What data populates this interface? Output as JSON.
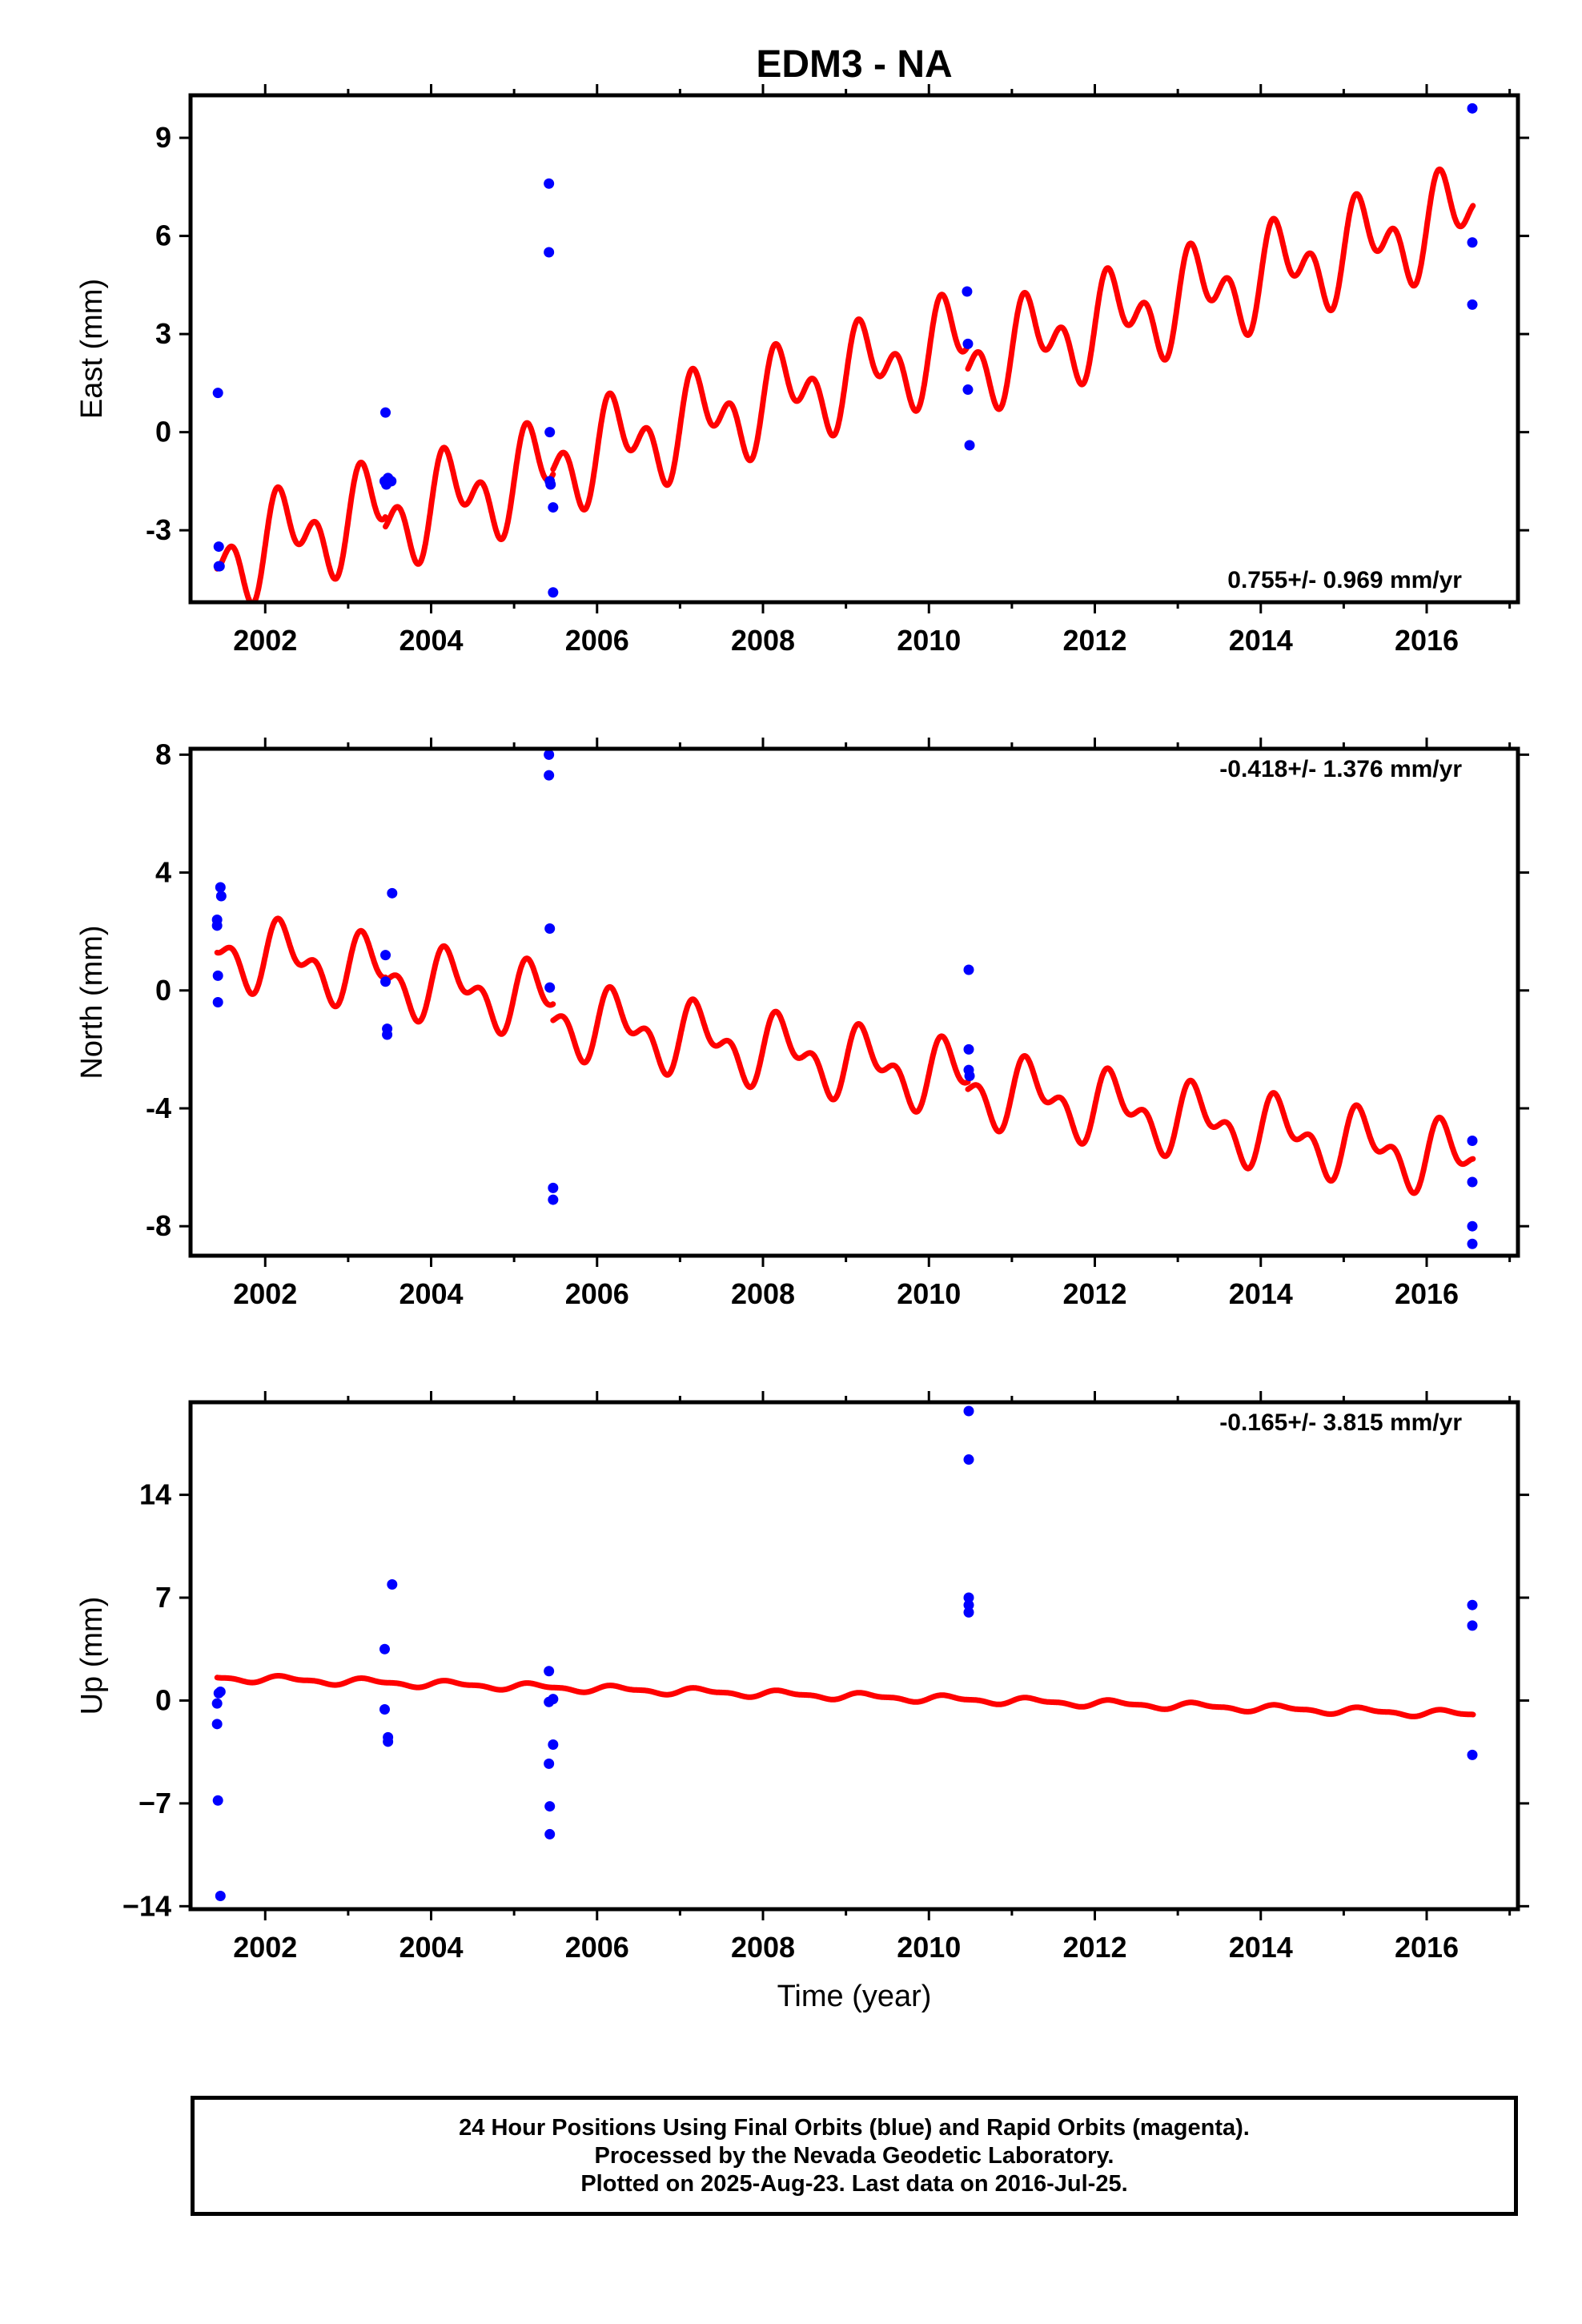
{
  "title": "EDM3 - NA",
  "colors": {
    "points": "#0000ff",
    "model": "#ff0000",
    "frame": "#000000"
  },
  "xlabel": "Time (year)",
  "footer": {
    "line1": "24 Hour Positions Using Final Orbits (blue) and Rapid Orbits (magenta).",
    "line2": "Processed by the Nevada Geodetic Laboratory.",
    "line3": "Plotted on 2025-Aug-23. Last data on 2016-Jul-25."
  },
  "chart_data": [
    {
      "type": "scatter",
      "ylabel": "East (mm)",
      "annotation": "0.755+/- 0.969 mm/yr",
      "annotation_position": "bottom-right",
      "xlim": [
        2001.1,
        2017.1
      ],
      "ylim": [
        -5.2,
        10.3
      ],
      "xticks": [
        2002,
        2004,
        2006,
        2008,
        2010,
        2012,
        2014,
        2016
      ],
      "yticks": [
        -3,
        0,
        3,
        6,
        9
      ],
      "points": [
        [
          2001.43,
          1.2
        ],
        [
          2001.44,
          -3.5
        ],
        [
          2001.45,
          -4.1
        ],
        [
          2001.44,
          -4.1
        ],
        [
          2003.45,
          0.6
        ],
        [
          2003.44,
          -1.5
        ],
        [
          2003.46,
          -1.6
        ],
        [
          2003.52,
          -1.5
        ],
        [
          2003.48,
          -1.4
        ],
        [
          2005.42,
          7.6
        ],
        [
          2005.42,
          5.5
        ],
        [
          2005.43,
          0.0
        ],
        [
          2005.43,
          -1.5
        ],
        [
          2005.44,
          -1.6
        ],
        [
          2005.47,
          -2.3
        ],
        [
          2005.47,
          -4.9
        ],
        [
          2010.46,
          4.3
        ],
        [
          2010.47,
          2.7
        ],
        [
          2010.47,
          1.3
        ],
        [
          2010.49,
          -0.4
        ],
        [
          2016.55,
          9.9
        ],
        [
          2016.55,
          5.8
        ],
        [
          2016.55,
          3.9
        ]
      ],
      "model": {
        "segments": [
          {
            "x": [
              2001.42,
              2003.45
            ],
            "intercept": -3.9,
            "slope": 0.755
          },
          {
            "x": [
              2003.45,
              2005.47
            ],
            "intercept": -4.2,
            "slope": 0.755
          },
          {
            "x": [
              2005.47,
              2010.47
            ],
            "intercept": -4.05,
            "slope": 0.755
          },
          {
            "x": [
              2010.47,
              2016.56
            ],
            "intercept": -4.75,
            "slope": 0.755
          }
        ],
        "annual_amplitude": 1.0,
        "semiannual_amplitude": 0.9
      }
    },
    {
      "type": "scatter",
      "ylabel": "North (mm)",
      "annotation": "-0.418+/- 1.376 mm/yr",
      "annotation_position": "top-right",
      "xlim": [
        2001.1,
        2017.1
      ],
      "ylim": [
        -9.0,
        8.2
      ],
      "xticks": [
        2002,
        2004,
        2006,
        2008,
        2010,
        2012,
        2014,
        2016
      ],
      "yticks": [
        -8,
        -4,
        0,
        4,
        8
      ],
      "points": [
        [
          2001.46,
          3.5
        ],
        [
          2001.47,
          3.2
        ],
        [
          2001.42,
          2.4
        ],
        [
          2001.42,
          2.2
        ],
        [
          2001.43,
          0.5
        ],
        [
          2001.43,
          -0.4
        ],
        [
          2003.53,
          3.3
        ],
        [
          2003.45,
          1.2
        ],
        [
          2003.45,
          0.3
        ],
        [
          2003.47,
          -1.3
        ],
        [
          2003.47,
          -1.5
        ],
        [
          2005.42,
          8.0
        ],
        [
          2005.42,
          7.3
        ],
        [
          2005.43,
          2.1
        ],
        [
          2005.43,
          0.1
        ],
        [
          2005.47,
          -6.7
        ],
        [
          2005.47,
          -7.1
        ],
        [
          2010.48,
          0.7
        ],
        [
          2010.48,
          -2.0
        ],
        [
          2010.48,
          -2.7
        ],
        [
          2010.49,
          -2.9
        ],
        [
          2016.55,
          -5.1
        ],
        [
          2016.55,
          -6.5
        ],
        [
          2016.55,
          -8.0
        ],
        [
          2016.55,
          -8.6
        ]
      ],
      "model": {
        "segments": [
          {
            "x": [
              2001.42,
              2003.45
            ],
            "intercept": 1.4,
            "slope": -0.418
          },
          {
            "x": [
              2003.45,
              2005.47
            ],
            "intercept": 1.3,
            "slope": -0.418
          },
          {
            "x": [
              2005.47,
              2010.47
            ],
            "intercept": 0.75,
            "slope": -0.418
          },
          {
            "x": [
              2010.47,
              2016.56
            ],
            "intercept": 0.5,
            "slope": -0.418
          }
        ],
        "annual_amplitude": 0.9,
        "semiannual_amplitude": 0.65
      }
    },
    {
      "type": "scatter",
      "ylabel": "Up (mm)",
      "annotation": "-0.165+/- 3.815 mm/yr",
      "annotation_position": "top-right",
      "xlim": [
        2001.1,
        2017.1
      ],
      "ylim": [
        -14.2,
        20.3
      ],
      "xticks": [
        2002,
        2004,
        2006,
        2008,
        2010,
        2012,
        2014,
        2016
      ],
      "yticks": [
        -14,
        -7,
        0,
        7,
        14
      ],
      "ytick_labels": [
        "−14",
        "−7",
        "0",
        "7",
        "14"
      ],
      "points": [
        [
          2001.46,
          0.6
        ],
        [
          2001.44,
          0.5
        ],
        [
          2001.42,
          -0.2
        ],
        [
          2001.42,
          -1.6
        ],
        [
          2001.43,
          -6.8
        ],
        [
          2001.46,
          -13.3
        ],
        [
          2003.53,
          7.9
        ],
        [
          2003.44,
          3.5
        ],
        [
          2003.44,
          -0.6
        ],
        [
          2003.48,
          -2.5
        ],
        [
          2003.48,
          -2.8
        ],
        [
          2005.42,
          2.0
        ],
        [
          2005.47,
          0.1
        ],
        [
          2005.42,
          -0.1
        ],
        [
          2005.47,
          -3.0
        ],
        [
          2005.42,
          -4.3
        ],
        [
          2005.43,
          -7.2
        ],
        [
          2005.43,
          -9.1
        ],
        [
          2010.48,
          19.7
        ],
        [
          2010.48,
          16.4
        ],
        [
          2010.48,
          7.0
        ],
        [
          2010.48,
          6.5
        ],
        [
          2010.48,
          6.0
        ],
        [
          2016.55,
          6.5
        ],
        [
          2016.55,
          5.1
        ],
        [
          2016.55,
          -3.7
        ]
      ],
      "model": {
        "segments": [
          {
            "x": [
              2001.42,
              2016.56
            ],
            "intercept": 1.55,
            "slope": -0.165
          }
        ],
        "annual_amplitude": 0.2,
        "semiannual_amplitude": 0.1
      }
    }
  ]
}
